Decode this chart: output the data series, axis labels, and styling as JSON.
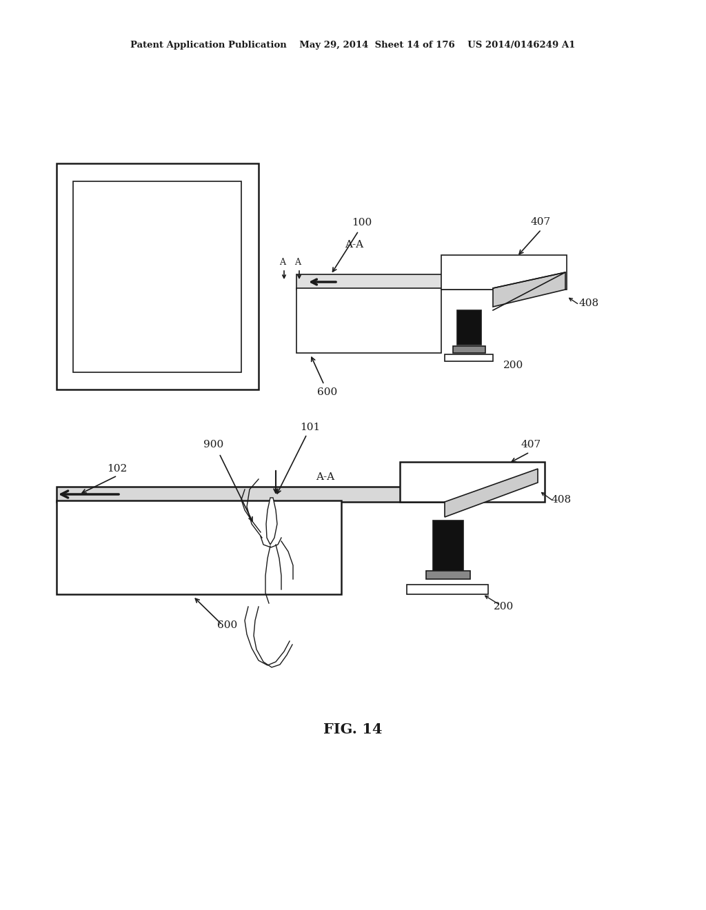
{
  "bg_color": "#ffffff",
  "line_color": "#1a1a1a",
  "header_left": "Patent Application Publication",
  "header_mid": "May 29, 2014  Sheet 14 of 176",
  "header_right": "US 2014/0146249 A1",
  "fig_label": "FIG. 14"
}
